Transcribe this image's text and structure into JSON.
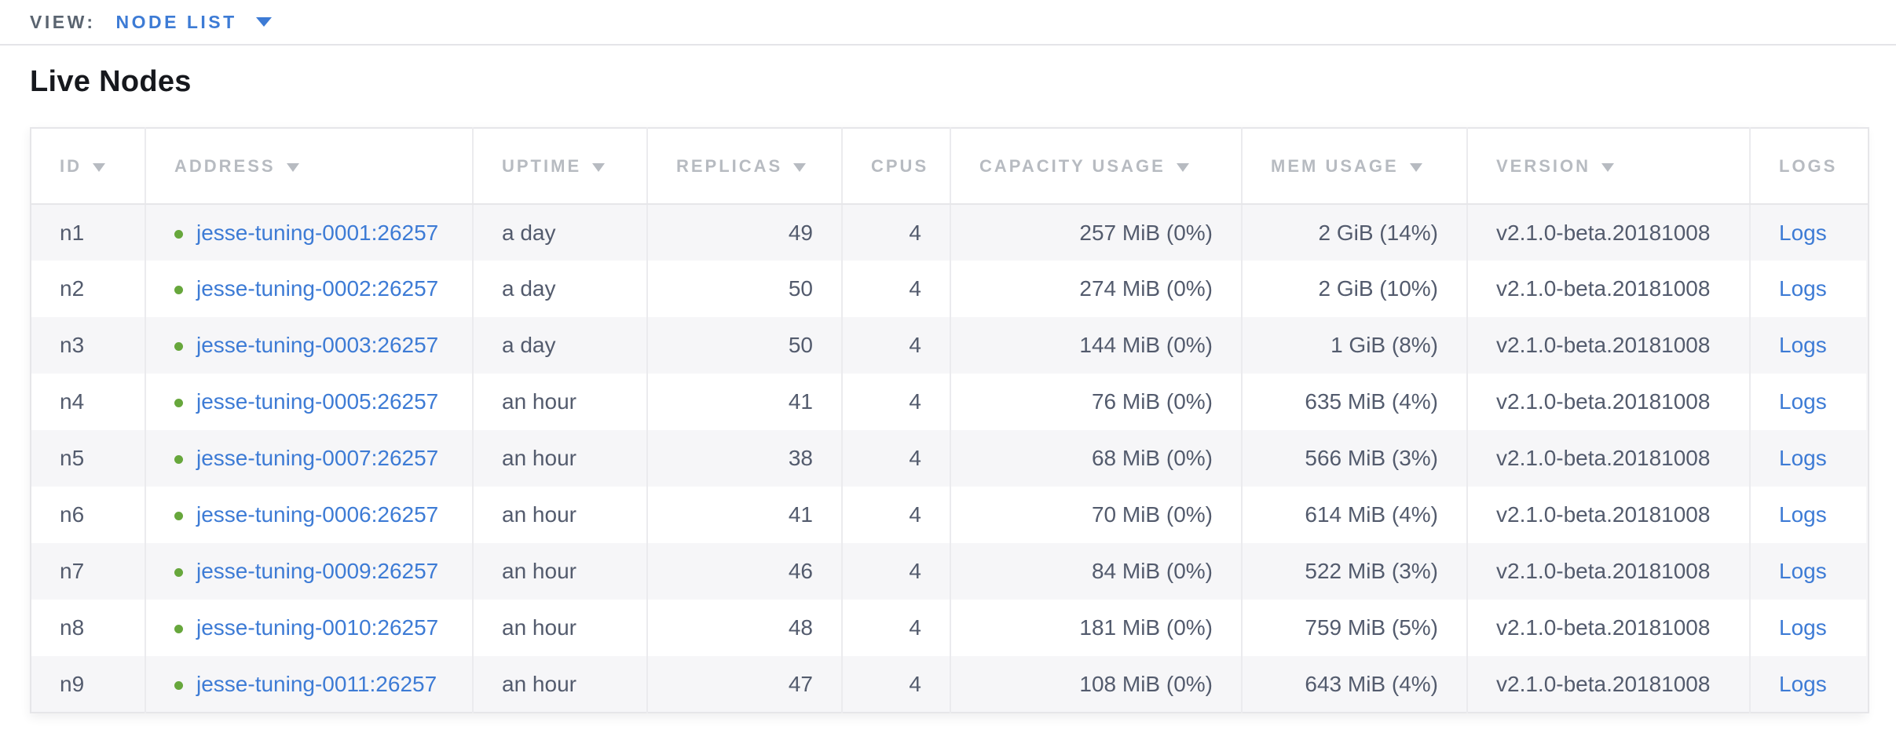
{
  "toolbar": {
    "view_label": "VIEW:",
    "view_value": "NODE LIST"
  },
  "page": {
    "title": "Live Nodes"
  },
  "table": {
    "columns": [
      {
        "key": "id",
        "label": "ID",
        "sortable": true
      },
      {
        "key": "address",
        "label": "ADDRESS",
        "sortable": true
      },
      {
        "key": "uptime",
        "label": "UPTIME",
        "sortable": true
      },
      {
        "key": "replicas",
        "label": "REPLICAS",
        "sortable": true
      },
      {
        "key": "cpus",
        "label": "CPUS",
        "sortable": false
      },
      {
        "key": "capacity",
        "label": "CAPACITY USAGE",
        "sortable": true
      },
      {
        "key": "mem",
        "label": "MEM USAGE",
        "sortable": true
      },
      {
        "key": "version",
        "label": "VERSION",
        "sortable": true
      },
      {
        "key": "logs",
        "label": "LOGS",
        "sortable": false
      }
    ],
    "rows": [
      {
        "id": "n1",
        "address": "jesse-tuning-0001:26257",
        "status": "live",
        "uptime": "a day",
        "replicas": "49",
        "cpus": "4",
        "capacity": "257 MiB (0%)",
        "mem": "2 GiB (14%)",
        "version": "v2.1.0-beta.20181008",
        "logs": "Logs"
      },
      {
        "id": "n2",
        "address": "jesse-tuning-0002:26257",
        "status": "live",
        "uptime": "a day",
        "replicas": "50",
        "cpus": "4",
        "capacity": "274 MiB (0%)",
        "mem": "2 GiB (10%)",
        "version": "v2.1.0-beta.20181008",
        "logs": "Logs"
      },
      {
        "id": "n3",
        "address": "jesse-tuning-0003:26257",
        "status": "live",
        "uptime": "a day",
        "replicas": "50",
        "cpus": "4",
        "capacity": "144 MiB (0%)",
        "mem": "1 GiB (8%)",
        "version": "v2.1.0-beta.20181008",
        "logs": "Logs"
      },
      {
        "id": "n4",
        "address": "jesse-tuning-0005:26257",
        "status": "live",
        "uptime": "an hour",
        "replicas": "41",
        "cpus": "4",
        "capacity": "76 MiB (0%)",
        "mem": "635 MiB (4%)",
        "version": "v2.1.0-beta.20181008",
        "logs": "Logs"
      },
      {
        "id": "n5",
        "address": "jesse-tuning-0007:26257",
        "status": "live",
        "uptime": "an hour",
        "replicas": "38",
        "cpus": "4",
        "capacity": "68 MiB (0%)",
        "mem": "566 MiB (3%)",
        "version": "v2.1.0-beta.20181008",
        "logs": "Logs"
      },
      {
        "id": "n6",
        "address": "jesse-tuning-0006:26257",
        "status": "live",
        "uptime": "an hour",
        "replicas": "41",
        "cpus": "4",
        "capacity": "70 MiB (0%)",
        "mem": "614 MiB (4%)",
        "version": "v2.1.0-beta.20181008",
        "logs": "Logs"
      },
      {
        "id": "n7",
        "address": "jesse-tuning-0009:26257",
        "status": "live",
        "uptime": "an hour",
        "replicas": "46",
        "cpus": "4",
        "capacity": "84 MiB (0%)",
        "mem": "522 MiB (3%)",
        "version": "v2.1.0-beta.20181008",
        "logs": "Logs"
      },
      {
        "id": "n8",
        "address": "jesse-tuning-0010:26257",
        "status": "live",
        "uptime": "an hour",
        "replicas": "48",
        "cpus": "4",
        "capacity": "181 MiB (0%)",
        "mem": "759 MiB (5%)",
        "version": "v2.1.0-beta.20181008",
        "logs": "Logs"
      },
      {
        "id": "n9",
        "address": "jesse-tuning-0011:26257",
        "status": "live",
        "uptime": "an hour",
        "replicas": "47",
        "cpus": "4",
        "capacity": "108 MiB (0%)",
        "mem": "643 MiB (4%)",
        "version": "v2.1.0-beta.20181008",
        "logs": "Logs"
      }
    ]
  },
  "icons": {
    "view_dropdown": "chevron-down-icon",
    "sort": "sort-arrow-icon",
    "node_status": "node-live-dot-icon"
  },
  "colors": {
    "accent_blue": "#3d7bd5",
    "node_live_green": "#67a73c",
    "header_gray": "#b7bbc1",
    "cell_text": "#535b6d",
    "title_text": "#16181d",
    "toolbar_label": "#5a6470",
    "row_stripe": "#f6f6f8"
  }
}
